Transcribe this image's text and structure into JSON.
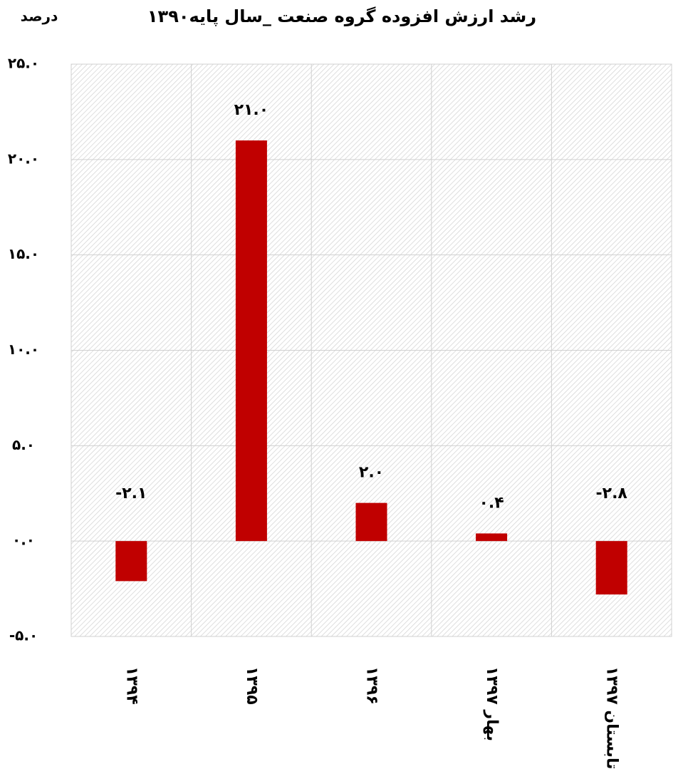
{
  "chart_data": {
    "type": "bar",
    "title": "رشد ارزش افزوده گروه صنعت _سال پایه۱۳۹۰",
    "y_label": "درصد",
    "categories": [
      "۱۳۹۴",
      "۱۳۹۵",
      "۱۳۹۶",
      "۱۳۹۷ بهار",
      "۱۳۹۷ تابستان"
    ],
    "values": [
      -2.1,
      21.0,
      2.0,
      0.4,
      -2.8
    ],
    "value_labels": [
      "-۲.۱",
      "۲۱.۰",
      "۲.۰",
      "۰.۴",
      "-۲.۸"
    ],
    "color": "#c00000",
    "ylim": [
      -5,
      25
    ],
    "yticks": [
      {
        "value": -5,
        "label": "-۵.۰"
      },
      {
        "value": 0,
        "label": "۰.۰"
      },
      {
        "value": 5,
        "label": "۵.۰"
      },
      {
        "value": 10,
        "label": "۱۰.۰"
      },
      {
        "value": 15,
        "label": "۱۵.۰"
      },
      {
        "value": 20,
        "label": "۲۰.۰"
      },
      {
        "value": 25,
        "label": "۲۵.۰"
      }
    ],
    "grid": true
  }
}
